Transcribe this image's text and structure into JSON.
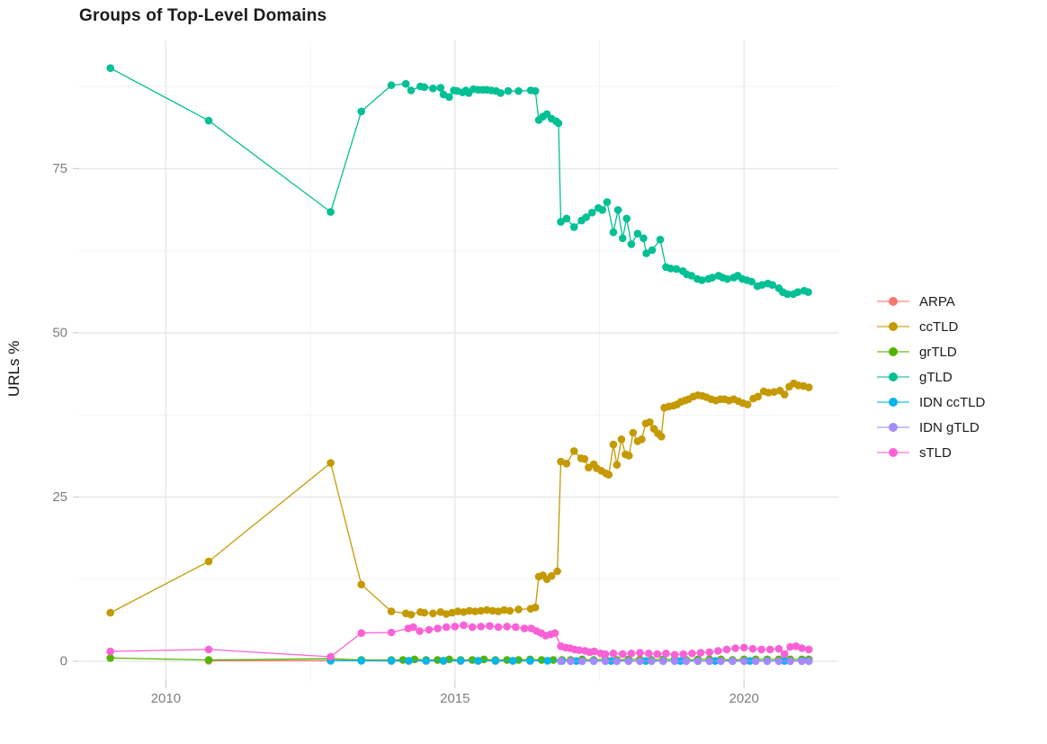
{
  "figure": {
    "title": "Groups of Top-Level Domains",
    "y_axis_label": "URLs %"
  },
  "chart_data": {
    "type": "line",
    "title": "Groups of Top-Level Domains",
    "xlabel": "",
    "ylabel": "URLs %",
    "grid": true,
    "legend_position": "right",
    "xlim": [
      2008.5,
      2021.63
    ],
    "ylim": [
      -3,
      94.5
    ],
    "x_ticks": [
      2010,
      2015,
      2020
    ],
    "x_minor_ticks": [
      2012.5,
      2017.5
    ],
    "y_ticks": [
      0,
      25,
      50,
      75
    ],
    "y_minor_ticks": [
      12.5,
      37.5,
      62.5,
      87.5
    ],
    "colors": {
      "major_grid": "#e7e7e7",
      "minor_grid": "#f2f2f2",
      "tick": "#d0d0d0",
      "tick_label": "#7d7d7d"
    },
    "series": [
      {
        "name": "ARPA",
        "color": "#F8766D",
        "x": [
          2010.74,
          2012.85,
          2013.38,
          2013.9,
          2014.2,
          2014.5,
          2014.8,
          2015.1,
          2015.4,
          2015.7,
          2016.0,
          2016.3
        ],
        "y": [
          0.1,
          0.1,
          0.1,
          0.05,
          0.05,
          0.05,
          0.05,
          0.05,
          0.05,
          0.05,
          0.05,
          0.05
        ]
      },
      {
        "name": "ccTLD",
        "color": "#C49A00",
        "x": [
          2009.04,
          2010.74,
          2012.85,
          2013.38,
          2013.9,
          2014.15,
          2014.24,
          2014.4,
          2014.47,
          2014.62,
          2014.75,
          2014.85,
          2014.95,
          2015.05,
          2015.15,
          2015.25,
          2015.35,
          2015.45,
          2015.55,
          2015.65,
          2015.75,
          2015.85,
          2015.95,
          2016.1,
          2016.31,
          2016.39,
          2016.45,
          2016.52,
          2016.59,
          2016.67,
          2016.77,
          2016.83,
          2016.93,
          2017.06,
          2017.18,
          2017.24,
          2017.31,
          2017.4,
          2017.45,
          2017.53,
          2017.61,
          2017.66,
          2017.74,
          2017.8,
          2017.88,
          2017.95,
          2018.01,
          2018.08,
          2018.16,
          2018.23,
          2018.3,
          2018.37,
          2018.44,
          2018.51,
          2018.57,
          2018.62,
          2018.7,
          2018.78,
          2018.84,
          2018.91,
          2018.98,
          2019.04,
          2019.12,
          2019.2,
          2019.28,
          2019.35,
          2019.43,
          2019.51,
          2019.59,
          2019.66,
          2019.74,
          2019.82,
          2019.9,
          2019.98,
          2020.06,
          2020.16,
          2020.24,
          2020.34,
          2020.42,
          2020.52,
          2020.62,
          2020.7,
          2020.78,
          2020.86,
          2020.94,
          2021.03,
          2021.12
        ],
        "y": [
          7.4,
          15.2,
          30.2,
          11.7,
          7.6,
          7.3,
          7.1,
          7.5,
          7.4,
          7.3,
          7.5,
          7.2,
          7.4,
          7.6,
          7.5,
          7.7,
          7.6,
          7.7,
          7.8,
          7.7,
          7.6,
          7.8,
          7.7,
          7.9,
          8.0,
          8.2,
          12.9,
          13.1,
          12.5,
          13.0,
          13.7,
          30.4,
          30.1,
          32.0,
          30.9,
          30.8,
          29.5,
          30.0,
          29.4,
          29.0,
          28.6,
          28.4,
          33.0,
          29.9,
          33.8,
          31.5,
          31.3,
          34.8,
          33.5,
          33.8,
          36.2,
          36.4,
          35.4,
          34.7,
          34.2,
          38.6,
          38.8,
          38.9,
          39.1,
          39.5,
          39.7,
          39.9,
          40.3,
          40.5,
          40.4,
          40.2,
          39.9,
          39.7,
          39.9,
          39.9,
          39.7,
          39.9,
          39.6,
          39.3,
          39.1,
          40.0,
          40.3,
          41.1,
          40.9,
          41.0,
          41.2,
          40.6,
          41.8,
          42.3,
          42.0,
          41.9,
          41.7
        ]
      },
      {
        "name": "grTLD",
        "color": "#53B400",
        "x": [
          2009.04,
          2010.74,
          2012.85,
          2013.38,
          2013.9,
          2014.1,
          2014.3,
          2014.5,
          2014.7,
          2014.9,
          2015.1,
          2015.3,
          2015.5,
          2015.7,
          2015.9,
          2016.1,
          2016.3,
          2016.5,
          2016.7,
          2016.85,
          2017.0,
          2017.2,
          2017.4,
          2017.6,
          2017.8,
          2018.0,
          2018.2,
          2018.4,
          2018.6,
          2018.8,
          2019.0,
          2019.2,
          2019.4,
          2019.6,
          2019.8,
          2020.0,
          2020.2,
          2020.4,
          2020.6,
          2020.8,
          2021.0,
          2021.12
        ],
        "y": [
          0.5,
          0.2,
          0.4,
          0.2,
          0.2,
          0.2,
          0.3,
          0.2,
          0.2,
          0.3,
          0.2,
          0.2,
          0.3,
          0.2,
          0.2,
          0.2,
          0.3,
          0.2,
          0.2,
          0.2,
          0.2,
          0.3,
          0.2,
          0.3,
          0.2,
          0.3,
          0.3,
          0.2,
          0.3,
          0.3,
          0.2,
          0.3,
          0.3,
          0.3,
          0.2,
          0.3,
          0.3,
          0.3,
          0.3,
          0.3,
          0.3,
          0.3
        ]
      },
      {
        "name": "gTLD",
        "color": "#00C094",
        "x": [
          2009.04,
          2010.74,
          2012.85,
          2013.38,
          2013.9,
          2014.15,
          2014.24,
          2014.4,
          2014.47,
          2014.62,
          2014.75,
          2014.8,
          2014.9,
          2014.98,
          2015.04,
          2015.13,
          2015.19,
          2015.24,
          2015.32,
          2015.4,
          2015.48,
          2015.55,
          2015.63,
          2015.71,
          2015.79,
          2015.92,
          2016.1,
          2016.31,
          2016.39,
          2016.45,
          2016.52,
          2016.59,
          2016.67,
          2016.75,
          2016.79,
          2016.83,
          2016.93,
          2017.06,
          2017.19,
          2017.27,
          2017.37,
          2017.48,
          2017.55,
          2017.63,
          2017.74,
          2017.82,
          2017.9,
          2017.97,
          2018.05,
          2018.16,
          2018.26,
          2018.31,
          2018.41,
          2018.55,
          2018.65,
          2018.73,
          2018.83,
          2018.94,
          2019.01,
          2019.09,
          2019.19,
          2019.27,
          2019.38,
          2019.45,
          2019.56,
          2019.63,
          2019.71,
          2019.82,
          2019.89,
          2019.97,
          2020.05,
          2020.13,
          2020.23,
          2020.31,
          2020.41,
          2020.49,
          2020.6,
          2020.67,
          2020.75,
          2020.85,
          2020.93,
          2021.04,
          2021.11
        ],
        "y": [
          90.3,
          82.3,
          68.4,
          83.7,
          87.7,
          87.9,
          86.9,
          87.5,
          87.4,
          87.2,
          87.3,
          86.3,
          85.9,
          86.9,
          86.8,
          86.6,
          86.9,
          86.5,
          87.1,
          87.0,
          87.0,
          87.0,
          86.9,
          86.8,
          86.5,
          86.8,
          86.8,
          86.9,
          86.8,
          82.4,
          82.9,
          83.3,
          82.6,
          82.2,
          81.9,
          66.9,
          67.4,
          66.1,
          67.1,
          67.6,
          68.3,
          69.0,
          68.7,
          69.9,
          65.3,
          68.7,
          64.4,
          67.4,
          63.5,
          65.1,
          64.4,
          62.1,
          62.6,
          64.2,
          60.0,
          59.8,
          59.7,
          59.4,
          58.9,
          58.7,
          58.2,
          58.0,
          58.2,
          58.4,
          58.7,
          58.4,
          58.2,
          58.4,
          58.7,
          58.2,
          58.0,
          57.8,
          57.1,
          57.3,
          57.5,
          57.3,
          56.8,
          56.2,
          55.9,
          55.9,
          56.2,
          56.4,
          56.2
        ]
      },
      {
        "name": "IDN ccTLD",
        "color": "#00B6EB",
        "x": [
          2012.85,
          2013.38,
          2013.9,
          2014.2,
          2014.5,
          2014.8,
          2015.1,
          2015.4,
          2015.7,
          2016.0,
          2016.3,
          2016.6,
          2016.85,
          2017.1,
          2017.4,
          2017.7,
          2018.0,
          2018.3,
          2018.6,
          2018.9,
          2019.2,
          2019.5,
          2019.8,
          2020.1,
          2020.4,
          2020.7,
          2021.0,
          2021.12
        ],
        "y": [
          0.1,
          0.1,
          0.1,
          0.1,
          0.1,
          0.1,
          0.1,
          0.1,
          0.1,
          0.1,
          0.1,
          0.1,
          0.05,
          0.05,
          0.05,
          0.05,
          0.05,
          0.05,
          0.05,
          0.05,
          0.05,
          0.05,
          0.05,
          0.05,
          0.05,
          0.05,
          0.05,
          0.05
        ]
      },
      {
        "name": "IDN gTLD",
        "color": "#A58AFF",
        "x": [
          2016.83,
          2017.0,
          2017.2,
          2017.4,
          2017.6,
          2017.8,
          2018.0,
          2018.2,
          2018.4,
          2018.6,
          2018.8,
          2019.0,
          2019.2,
          2019.4,
          2019.6,
          2019.8,
          2020.0,
          2020.2,
          2020.4,
          2020.6,
          2020.8,
          2021.0,
          2021.12
        ],
        "y": [
          0.02,
          0.02,
          0.02,
          0.02,
          0.02,
          0.02,
          0.02,
          0.02,
          0.02,
          0.02,
          0.02,
          0.02,
          0.02,
          0.02,
          0.02,
          0.02,
          0.02,
          0.02,
          0.02,
          0.02,
          0.02,
          0.02,
          0.02
        ]
      },
      {
        "name": "sTLD",
        "color": "#FB61D7",
        "x": [
          2009.04,
          2010.74,
          2012.85,
          2013.38,
          2013.9,
          2014.19,
          2014.28,
          2014.39,
          2014.55,
          2014.7,
          2014.85,
          2015.0,
          2015.15,
          2015.3,
          2015.45,
          2015.6,
          2015.75,
          2015.9,
          2016.05,
          2016.2,
          2016.32,
          2016.41,
          2016.49,
          2016.57,
          2016.65,
          2016.73,
          2016.83,
          2016.91,
          2016.99,
          2017.07,
          2017.15,
          2017.25,
          2017.33,
          2017.41,
          2017.52,
          2017.6,
          2017.74,
          2017.9,
          2018.05,
          2018.2,
          2018.35,
          2018.5,
          2018.65,
          2018.8,
          2018.95,
          2019.1,
          2019.25,
          2019.4,
          2019.55,
          2019.7,
          2019.85,
          2020.0,
          2020.15,
          2020.3,
          2020.45,
          2020.6,
          2020.7,
          2020.8,
          2020.9,
          2021.0,
          2021.12
        ],
        "y": [
          1.5,
          1.8,
          0.7,
          4.3,
          4.4,
          5.0,
          5.2,
          4.6,
          4.8,
          5.0,
          5.2,
          5.3,
          5.5,
          5.2,
          5.3,
          5.4,
          5.2,
          5.3,
          5.2,
          5.0,
          5.0,
          4.6,
          4.3,
          3.9,
          4.1,
          4.3,
          2.3,
          2.1,
          2.0,
          1.8,
          1.7,
          1.6,
          1.4,
          1.5,
          1.2,
          1.1,
          1.2,
          1.1,
          1.2,
          1.3,
          1.2,
          1.1,
          1.2,
          1.0,
          1.1,
          1.2,
          1.3,
          1.4,
          1.6,
          1.8,
          2.0,
          2.1,
          1.9,
          1.8,
          1.8,
          1.9,
          1.1,
          2.2,
          2.3,
          2.0,
          1.8
        ]
      }
    ]
  }
}
